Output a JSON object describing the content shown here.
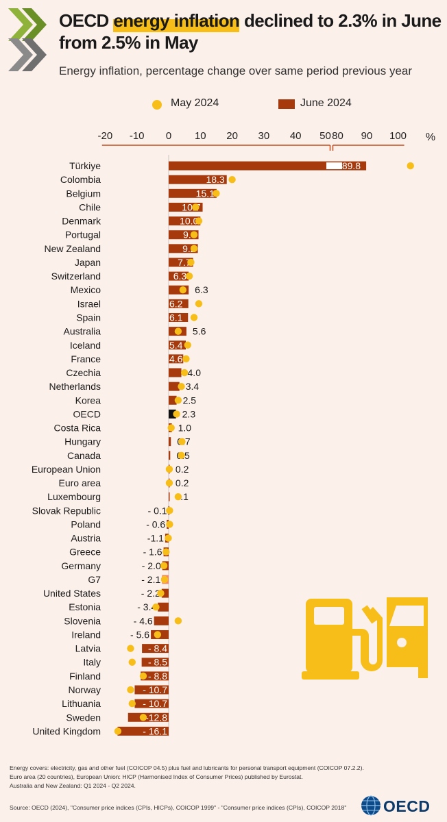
{
  "header": {
    "title_part1": "OECD ",
    "title_highlight": "energy inflation",
    "title_part2": " declined to 2.3% in June from 2.5% in May",
    "subtitle": "Energy inflation, percentage change over same period previous year"
  },
  "legend": {
    "may_label": "May 2024",
    "june_label": "June 2024"
  },
  "colors": {
    "june_bar": "#a63a0c",
    "may_dot": "#f7be1a",
    "oecd_bar": "#111111",
    "g7_bar": "#f08a6a",
    "accent_yellow": "#f7be1a",
    "axis_line": "#c44a1a"
  },
  "chart_data": {
    "type": "bar",
    "orientation": "horizontal",
    "axis": {
      "ticks": [
        "-20",
        "-10",
        "0",
        "10",
        "20",
        "30",
        "40",
        "50",
        "80",
        "90",
        "100"
      ],
      "unit": "%",
      "broken": true,
      "break_between": [
        50,
        80
      ]
    },
    "categories": [
      "Türkiye",
      "Colombia",
      "Belgium",
      "Chile",
      "Denmark",
      "Portugal",
      "New Zealand",
      "Japan",
      "Switzerland",
      "Mexico",
      "Israel",
      "Spain",
      "Australia",
      "Iceland",
      "France",
      "Czechia",
      "Netherlands",
      "Korea",
      "OECD",
      "Costa Rica",
      "Hungary",
      "Canada",
      "European Union",
      "Euro area",
      "Luxembourg",
      "Slovak Republic",
      "Poland",
      "Austria",
      "Greece",
      "Germany",
      "G7",
      "United States",
      "Estonia",
      "Slovenia",
      "Ireland",
      "Latvia",
      "Italy",
      "Finland",
      "Norway",
      "Lithuania",
      "Sweden",
      "United Kingdom"
    ],
    "series": [
      {
        "name": "June 2024",
        "values": [
          89.8,
          18.3,
          15.1,
          10.7,
          10.0,
          9.4,
          9.2,
          7.7,
          6.3,
          6.3,
          6.2,
          6.1,
          5.6,
          5.4,
          4.6,
          4.0,
          3.4,
          2.5,
          2.3,
          1.0,
          0.7,
          0.5,
          0.2,
          0.2,
          0.1,
          -0.1,
          -0.6,
          -1.1,
          -1.6,
          -2.0,
          -2.1,
          -2.2,
          -3.4,
          -4.6,
          -5.6,
          -8.4,
          -8.5,
          -8.8,
          -10.7,
          -10.7,
          -12.8,
          -16.1
        ]
      },
      {
        "name": "May 2024",
        "values": [
          104,
          20,
          15,
          8.5,
          9.5,
          8,
          8,
          7,
          6.5,
          4.5,
          9.5,
          8,
          3,
          6,
          5.5,
          5,
          4,
          3,
          2.5,
          0.8,
          4.2,
          4,
          0.2,
          0.2,
          3,
          0.3,
          0.3,
          -0.1,
          -0.8,
          -1.5,
          -1.3,
          -2.5,
          -4,
          3,
          -3.5,
          -12,
          -11.5,
          -8,
          -12,
          -11.5,
          -8,
          -16
        ]
      }
    ],
    "data_labels": [
      "89.8",
      "18.3",
      "15.1",
      "10.7",
      "10.0",
      "9.4",
      "9.2",
      "7.7",
      "6.3",
      "6.3",
      "6.2",
      "6.1",
      "5.6",
      "5.4",
      "4.6",
      "4.0",
      "3.4",
      "2.5",
      "2.3",
      "1.0",
      "0.7",
      "0.5",
      "0.2",
      "0.2",
      "0.1",
      "- 0.1",
      "- 0.6",
      "-1.1",
      "- 1.6",
      "- 2.0",
      "- 2.1",
      "- 2.2",
      "- 3.4",
      "- 4.6",
      "- 5.6",
      "- 8.4",
      "- 8.5",
      "- 8.8",
      "- 10.7",
      "- 10.7",
      "-12.8",
      "- 16.1"
    ],
    "highlight": {
      "OECD": "oecd_bar",
      "G7": "g7_bar"
    }
  },
  "notes": [
    "Energy covers: electricity, gas and other fuel (COICOP 04.5) plus fuel and lubricants for personal transport equipment (COICOP 07.2.2).",
    "Euro area (20 countries), European Union: HICP (Harmonised Index of Consumer Prices) published by Eurostat.",
    "Australia and New Zealand: Q1 2024 - Q2 2024."
  ],
  "source": "Source: OECD (2024), \"Consumer price indices (CPIs, HICPs), COICOP 1999\" - \"Consumer price indices (CPIs), COICOP 2018\"",
  "brand": "OECD",
  "icons": [
    "oecd-chevron-logo",
    "fuel-pump-icon",
    "car-icon",
    "globe-icon"
  ]
}
